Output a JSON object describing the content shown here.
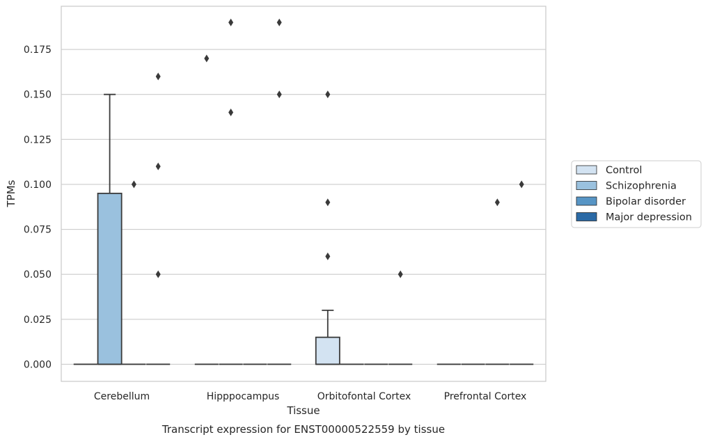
{
  "chart_data": {
    "type": "box",
    "caption": "Transcript expression for ENST00000522559 by tissue",
    "xlabel": "Tissue",
    "ylabel": "TPMs",
    "ylim": [
      -0.0095,
      0.199
    ],
    "yticks": [
      "0.000",
      "0.025",
      "0.050",
      "0.075",
      "0.100",
      "0.125",
      "0.150",
      "0.175"
    ],
    "grid": "horizontal",
    "legend_position": "right",
    "categories": [
      "Cerebellum",
      "Hipppocampus",
      "Orbitofontal Cortex",
      "Prefrontal Cortex"
    ],
    "series": [
      {
        "name": "Control",
        "color": "#d3e3f2",
        "boxes": [
          {
            "q1": 0,
            "median": 0,
            "q3": 0,
            "whisker_low": 0,
            "whisker_high": 0,
            "outliers": []
          },
          {
            "q1": 0,
            "median": 0,
            "q3": 0,
            "whisker_low": 0,
            "whisker_high": 0,
            "outliers": [
              0.17
            ]
          },
          {
            "q1": 0,
            "median": 0,
            "q3": 0.015,
            "whisker_low": 0,
            "whisker_high": 0.03,
            "outliers": [
              0.06,
              0.09,
              0.15
            ]
          },
          {
            "q1": 0,
            "median": 0,
            "q3": 0,
            "whisker_low": 0,
            "whisker_high": 0,
            "outliers": []
          }
        ]
      },
      {
        "name": "Schizophrenia",
        "color": "#9ac1de",
        "boxes": [
          {
            "q1": 0,
            "median": 0,
            "q3": 0.095,
            "whisker_low": 0,
            "whisker_high": 0.15,
            "outliers": []
          },
          {
            "q1": 0,
            "median": 0,
            "q3": 0,
            "whisker_low": 0,
            "whisker_high": 0,
            "outliers": [
              0.14,
              0.19
            ]
          },
          {
            "q1": 0,
            "median": 0,
            "q3": 0,
            "whisker_low": 0,
            "whisker_high": 0,
            "outliers": []
          },
          {
            "q1": 0,
            "median": 0,
            "q3": 0,
            "whisker_low": 0,
            "whisker_high": 0,
            "outliers": []
          }
        ]
      },
      {
        "name": "Bipolar disorder",
        "color": "#5795c5",
        "boxes": [
          {
            "q1": 0,
            "median": 0,
            "q3": 0,
            "whisker_low": 0,
            "whisker_high": 0,
            "outliers": [
              0.1
            ]
          },
          {
            "q1": 0,
            "median": 0,
            "q3": 0,
            "whisker_low": 0,
            "whisker_high": 0,
            "outliers": []
          },
          {
            "q1": 0,
            "median": 0,
            "q3": 0,
            "whisker_low": 0,
            "whisker_high": 0,
            "outliers": []
          },
          {
            "q1": 0,
            "median": 0,
            "q3": 0,
            "whisker_low": 0,
            "whisker_high": 0,
            "outliers": [
              0.09
            ]
          }
        ]
      },
      {
        "name": "Major depression",
        "color": "#2b6aa6",
        "boxes": [
          {
            "q1": 0,
            "median": 0,
            "q3": 0,
            "whisker_low": 0,
            "whisker_high": 0,
            "outliers": [
              0.05,
              0.11,
              0.16
            ]
          },
          {
            "q1": 0,
            "median": 0,
            "q3": 0,
            "whisker_low": 0,
            "whisker_high": 0,
            "outliers": [
              0.15,
              0.19
            ]
          },
          {
            "q1": 0,
            "median": 0,
            "q3": 0,
            "whisker_low": 0,
            "whisker_high": 0,
            "outliers": [
              0.05
            ]
          },
          {
            "q1": 0,
            "median": 0,
            "q3": 0,
            "whisker_low": 0,
            "whisker_high": 0,
            "outliers": [
              0.1
            ]
          }
        ]
      }
    ]
  }
}
